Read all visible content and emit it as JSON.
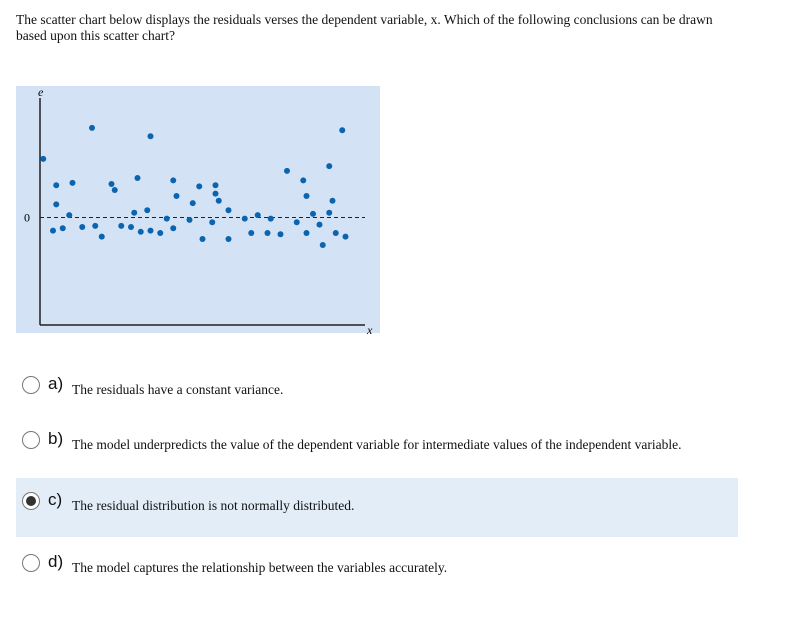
{
  "question": "The scatter chart below displays the residuals verses the dependent variable, x.  Which of the following conclusions can be drawn based upon this scatter chart?",
  "chart_data": {
    "type": "scatter",
    "y_label": "e",
    "x_label": "x",
    "color": "#0b64b0",
    "xlim": [
      0,
      100
    ],
    "ylim": [
      -0.9,
      1
    ],
    "yticks": [
      0
    ],
    "zero_line": true,
    "x": [
      1,
      5,
      10,
      5,
      16,
      9,
      7,
      4,
      13,
      17,
      19,
      22,
      23,
      30,
      29,
      33,
      34,
      25,
      28,
      31,
      34,
      37,
      39,
      41,
      42,
      41,
      46,
      47,
      49,
      50,
      54,
      54,
      55,
      53,
      58,
      58,
      63,
      67,
      71,
      65,
      70,
      74,
      76,
      79,
      81,
      82,
      84,
      86,
      89,
      90,
      89,
      91,
      93,
      94,
      87,
      82
    ],
    "y": [
      0.49,
      0.27,
      0.29,
      0.11,
      0.75,
      0.02,
      -0.09,
      -0.11,
      -0.08,
      -0.07,
      -0.16,
      0.28,
      0.23,
      0.33,
      0.04,
      0.06,
      0.68,
      -0.07,
      -0.08,
      -0.12,
      -0.11,
      -0.13,
      -0.01,
      0.31,
      0.18,
      -0.09,
      -0.02,
      0.12,
      0.26,
      -0.18,
      0.27,
      0.2,
      0.14,
      -0.04,
      -0.18,
      0.06,
      -0.01,
      0.02,
      -0.01,
      -0.13,
      -0.13,
      -0.14,
      0.39,
      -0.04,
      0.31,
      0.18,
      0.03,
      -0.06,
      0.43,
      0.14,
      0.04,
      -0.13,
      0.73,
      -0.16,
      -0.23,
      -0.13
    ]
  },
  "options": [
    {
      "letter": "a)",
      "text": "The residuals have a constant variance.",
      "selected": false
    },
    {
      "letter": "b)",
      "text": "The model underpredicts the value of the dependent variable for intermediate values of the independent variable.",
      "selected": false
    },
    {
      "letter": "c)",
      "text": "The residual distribution is not normally distributed.",
      "selected": true
    },
    {
      "letter": "d)",
      "text": "The model captures the relationship between the variables accurately.",
      "selected": false
    }
  ]
}
